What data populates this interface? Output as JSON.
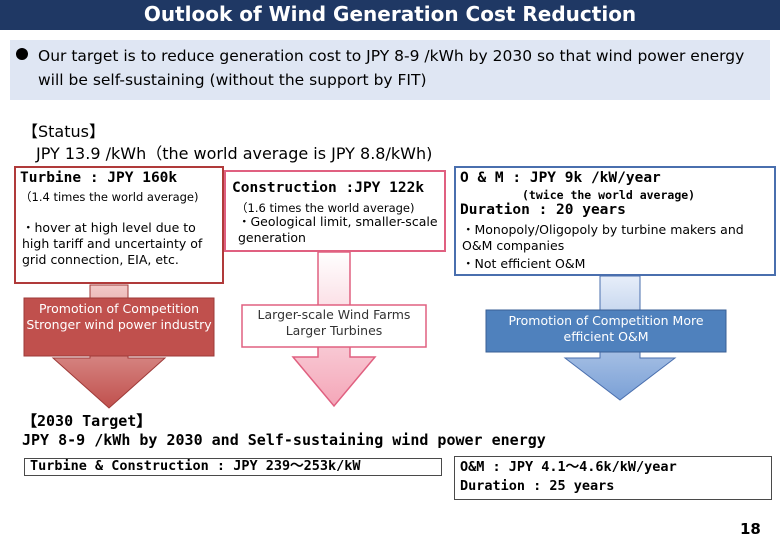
{
  "title": "Outlook of Wind Generation Cost Reduction",
  "intro": "Our target is to reduce generation cost to JPY 8-9 /kWh by 2030 so that wind power energy will be self-sustaining (without the support by FIT)",
  "status": {
    "heading": "【Status】",
    "value": "JPY 13.9 /kWh（the world average is JPY 8.8/kWh)"
  },
  "turbine": {
    "title": "Turbine : JPY 160k",
    "note": "（1.4 times the world average)",
    "detail": "・hover at high level due to high tariff and uncertainty of grid connection, EIA, etc.",
    "arrow_text": "Promotion of Competition Stronger wind power industry"
  },
  "construction": {
    "title": "Construction :JPY 122k",
    "note": "（1.6 times the world average)",
    "detail": "・Geological limit, smaller-scale generation",
    "arrow_text": "Larger-scale Wind Farms Larger Turbines"
  },
  "om": {
    "title": "O & M : JPY 9k /kW/year",
    "note": "(twice the world average)",
    "duration": "Duration : 20 years",
    "detail1": "・Monopoly/Oligopoly by turbine makers and O&M companies",
    "detail2": "・Not efficient O&M",
    "arrow_text": "Promotion of Competition More efficient O&M"
  },
  "target": {
    "heading": "【2030 Target】",
    "line": "JPY 8-9 /kWh by 2030 and Self-sustaining wind power energy",
    "turbine_construction": "Turbine & Construction : JPY 239～253k/kW",
    "om": "O&M  : JPY 4.1～4.6k/kW/year",
    "duration": "Duration : 25 years"
  },
  "page_number": "18",
  "colors": {
    "title_bg": "#1f3864",
    "turbine_arrow": "#c0504d",
    "construction_arrow": "#f4a6b8",
    "om_arrow": "#7aa0d6"
  }
}
